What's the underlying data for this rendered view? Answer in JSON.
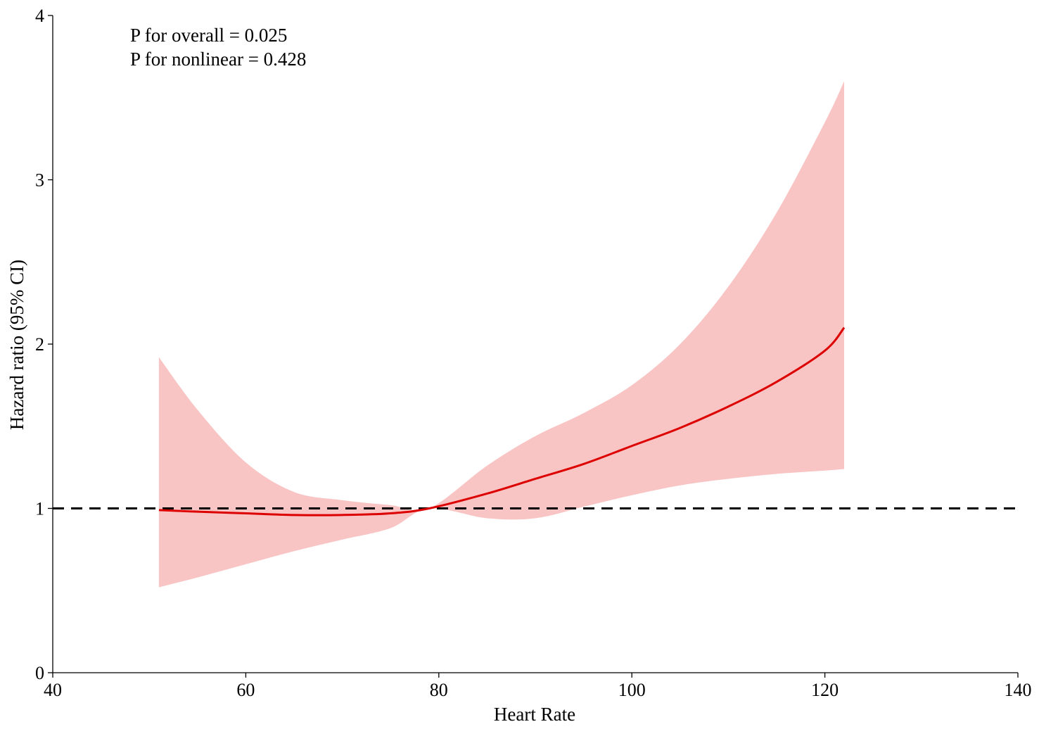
{
  "chart_data": {
    "type": "line",
    "title": "",
    "xlabel": "Heart Rate",
    "ylabel": "Hazard ratio (95% CI)",
    "xlim": [
      40,
      140
    ],
    "ylim": [
      0,
      4
    ],
    "xticks": [
      40,
      60,
      80,
      100,
      120,
      140
    ],
    "yticks": [
      0,
      1,
      2,
      3,
      4
    ],
    "grid": false,
    "annotations": [
      "P for overall = 0.025",
      "P for nonlinear = 0.428"
    ],
    "reference_line": {
      "y": 1,
      "style": "dashed",
      "color": "#000000"
    },
    "series": [
      {
        "kind": "line",
        "color": "#dd0000",
        "x": [
          51,
          55,
          60,
          65,
          70,
          75,
          79,
          85,
          90,
          95,
          100,
          105,
          110,
          115,
          120,
          122
        ],
        "y": [
          0.99,
          0.98,
          0.97,
          0.96,
          0.96,
          0.97,
          1.0,
          1.09,
          1.18,
          1.27,
          1.38,
          1.49,
          1.62,
          1.77,
          1.96,
          2.1
        ]
      },
      {
        "kind": "ci_band",
        "color": "#f9c4c4",
        "x": [
          51,
          55,
          60,
          65,
          70,
          75,
          79,
          85,
          90,
          95,
          100,
          105,
          110,
          115,
          120,
          122
        ],
        "lower": [
          0.52,
          0.58,
          0.66,
          0.74,
          0.81,
          0.88,
          1.0,
          0.94,
          0.94,
          1.01,
          1.08,
          1.14,
          1.18,
          1.21,
          1.23,
          1.24
        ],
        "upper": [
          1.92,
          1.6,
          1.28,
          1.1,
          1.05,
          1.02,
          1.0,
          1.26,
          1.44,
          1.58,
          1.75,
          2.0,
          2.35,
          2.8,
          3.35,
          3.6
        ]
      }
    ]
  }
}
